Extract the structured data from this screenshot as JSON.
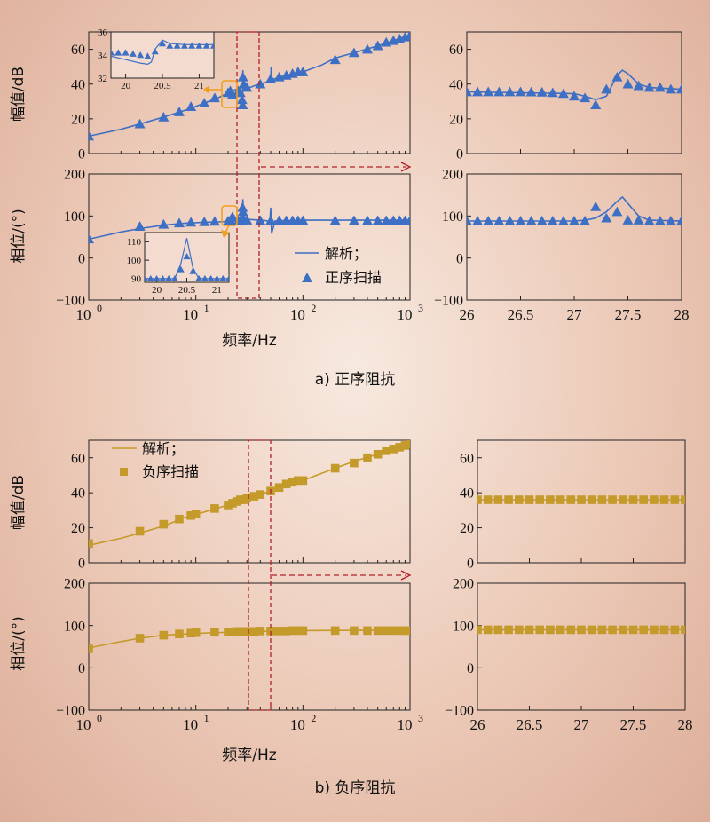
{
  "colors": {
    "blue": "#3d6fc4",
    "gold": "#c49a2a",
    "red_box": "#b3202a",
    "inset_marker": "#f0a020"
  },
  "text": {
    "caption_a": "a) 正序阻抗",
    "caption_b": "b) 负序阻抗",
    "xlabel": "频率/Hz",
    "ylabel_mag": "幅值/dB",
    "ylabel_phase": "相位/(°)",
    "legend_a_line": "解析；",
    "legend_a_marker": "正序扫描",
    "legend_b_line": "解析；",
    "legend_b_marker": "负序扫描",
    "log_ticks": [
      "10",
      "10",
      "10",
      "10"
    ],
    "log_exps": [
      "0",
      "1",
      "2",
      "3"
    ]
  },
  "chart_data": [
    {
      "id": "a_mag",
      "type": "line",
      "xscale": "log",
      "xlim": [
        1,
        1000
      ],
      "ylim": [
        0,
        70
      ],
      "yticks": [
        "0",
        "20",
        "40",
        "60"
      ],
      "analytic": {
        "x": [
          1,
          2,
          3,
          5,
          8,
          12,
          16,
          20,
          22,
          24,
          25,
          26,
          27,
          27.3,
          27.5,
          28,
          29,
          30,
          32,
          35,
          40,
          45,
          50,
          50.5,
          51,
          52,
          55,
          60,
          70,
          80,
          100,
          150,
          200,
          300,
          500,
          700,
          1000
        ],
        "y": [
          10,
          14,
          17,
          21,
          25,
          29,
          32,
          35,
          36,
          37,
          36,
          34,
          32,
          30,
          48,
          38,
          37,
          38,
          38,
          39,
          40,
          41,
          42,
          50,
          43,
          43,
          43,
          44,
          45,
          46,
          47,
          51,
          55,
          58,
          62,
          65,
          68
        ]
      },
      "scan": {
        "x": [
          1,
          3,
          5,
          7,
          9,
          12,
          15,
          20,
          21,
          22,
          25,
          26,
          27,
          27.3,
          27.5,
          28,
          30,
          40,
          50,
          60,
          70,
          80,
          90,
          100,
          200,
          300,
          400,
          500,
          600,
          700,
          800,
          900,
          1000
        ],
        "y": [
          10,
          17,
          21,
          24,
          27,
          29,
          32,
          35,
          36,
          34,
          36,
          35,
          31,
          28,
          44,
          40,
          38,
          40,
          43,
          44,
          45,
          46,
          47,
          47,
          54,
          58,
          60,
          62,
          64,
          65,
          66,
          67,
          68
        ]
      }
    },
    {
      "id": "a_mag_inset",
      "type": "line",
      "xlim": [
        19.8,
        21.2
      ],
      "ylim": [
        32,
        36
      ],
      "xticks": [
        "20",
        "20.5",
        "21"
      ],
      "yticks": [
        "32",
        "34",
        "36"
      ],
      "analytic": {
        "x": [
          19.8,
          20,
          20.2,
          20.3,
          20.35,
          20.4,
          20.5,
          20.6,
          20.8,
          21,
          21.2
        ],
        "y": [
          33.9,
          33.6,
          33.3,
          33.2,
          33.4,
          34.5,
          35.3,
          35.0,
          34.9,
          34.9,
          34.9
        ]
      },
      "scan": {
        "x": [
          19.8,
          19.9,
          20,
          20.1,
          20.2,
          20.3,
          20.4,
          20.5,
          20.6,
          20.7,
          20.8,
          20.9,
          21,
          21.1,
          21.2
        ],
        "y": [
          34.2,
          34.2,
          34.2,
          34.1,
          34.0,
          33.9,
          34.3,
          35.0,
          34.8,
          34.8,
          34.8,
          34.8,
          34.8,
          34.8,
          34.8
        ]
      }
    },
    {
      "id": "a_phase",
      "type": "line",
      "xscale": "log",
      "xlim": [
        1,
        1000
      ],
      "ylim": [
        -100,
        200
      ],
      "yticks": [
        "−100",
        "0",
        "100",
        "200"
      ],
      "analytic": {
        "x": [
          1,
          2,
          3,
          5,
          8,
          12,
          16,
          20,
          24,
          25,
          26,
          27,
          27.5,
          28,
          30,
          40,
          45,
          49,
          50,
          51,
          55,
          60,
          80,
          100,
          200,
          500,
          1000
        ],
        "y": [
          45,
          62,
          70,
          78,
          83,
          85,
          86,
          87,
          88,
          88,
          90,
          100,
          140,
          95,
          92,
          90,
          89,
          85,
          120,
          58,
          88,
          89,
          89,
          90,
          90,
          90,
          90
        ]
      },
      "scan": {
        "x": [
          1,
          3,
          5,
          7,
          9,
          12,
          15,
          20,
          21,
          22,
          25,
          26,
          27,
          27.3,
          27.5,
          28,
          30,
          40,
          50,
          60,
          70,
          80,
          90,
          100,
          200,
          300,
          400,
          500,
          600,
          700,
          800,
          900,
          1000
        ],
        "y": [
          45,
          75,
          80,
          83,
          85,
          86,
          87,
          88,
          90,
          98,
          88,
          88,
          90,
          120,
          110,
          92,
          90,
          89,
          89,
          89,
          89,
          89,
          89,
          89,
          89,
          89,
          89,
          89,
          89,
          89,
          89,
          89,
          89
        ]
      }
    },
    {
      "id": "a_phase_inset",
      "type": "line",
      "xlim": [
        19.8,
        21.2
      ],
      "ylim": [
        88,
        115
      ],
      "xticks": [
        "20",
        "20.5",
        "21"
      ],
      "yticks": [
        "90",
        "100",
        "110"
      ],
      "analytic": {
        "x": [
          19.8,
          20.2,
          20.3,
          20.4,
          20.5,
          20.6,
          20.7,
          21,
          21.2
        ],
        "y": [
          90,
          90,
          90,
          98,
          112,
          96,
          90,
          90,
          90
        ]
      },
      "scan": {
        "x": [
          19.8,
          19.9,
          20,
          20.1,
          20.2,
          20.3,
          20.4,
          20.5,
          20.6,
          20.7,
          20.8,
          20.9,
          21,
          21.1,
          21.2
        ],
        "y": [
          90,
          90,
          90,
          90,
          90,
          90,
          95,
          102,
          94,
          90,
          90,
          90,
          90,
          90,
          90
        ]
      }
    },
    {
      "id": "a_mag_zoom",
      "type": "line",
      "xlim": [
        26,
        28
      ],
      "ylim": [
        0,
        70
      ],
      "xticks": [
        "26",
        "26.5",
        "27",
        "27.5",
        "28"
      ],
      "yticks": [
        "0",
        "20",
        "40",
        "60"
      ],
      "analytic": {
        "x": [
          26,
          26.5,
          27,
          27.1,
          27.2,
          27.3,
          27.4,
          27.45,
          27.5,
          27.6,
          27.7,
          28
        ],
        "y": [
          35.5,
          35,
          34.5,
          33,
          31,
          33,
          45,
          48,
          46,
          40,
          38,
          37
        ]
      },
      "scan": {
        "x": [
          26,
          26.1,
          26.2,
          26.3,
          26.4,
          26.5,
          26.6,
          26.7,
          26.8,
          26.9,
          27,
          27.1,
          27.2,
          27.3,
          27.4,
          27.5,
          27.6,
          27.7,
          27.8,
          27.9,
          28
        ],
        "y": [
          35.5,
          35.5,
          35.5,
          35.5,
          35.5,
          35.5,
          35.4,
          35.3,
          35,
          34.5,
          33,
          32,
          28,
          37,
          44,
          40,
          39,
          38,
          38,
          37,
          37
        ]
      }
    },
    {
      "id": "a_phase_zoom",
      "type": "line",
      "xlim": [
        26,
        28
      ],
      "ylim": [
        -100,
        200
      ],
      "xticks": [
        "26",
        "26.5",
        "27",
        "27.5",
        "28"
      ],
      "yticks": [
        "−100",
        "0",
        "100",
        "200"
      ],
      "analytic": {
        "x": [
          26,
          26.5,
          27,
          27.1,
          27.2,
          27.3,
          27.4,
          27.45,
          27.5,
          27.6,
          27.7,
          28
        ],
        "y": [
          88,
          88,
          88,
          90,
          95,
          110,
          135,
          145,
          130,
          100,
          90,
          88
        ]
      },
      "scan": {
        "x": [
          26,
          26.1,
          26.2,
          26.3,
          26.4,
          26.5,
          26.6,
          26.7,
          26.8,
          26.9,
          27,
          27.1,
          27.2,
          27.3,
          27.4,
          27.5,
          27.6,
          27.7,
          27.8,
          27.9,
          28
        ],
        "y": [
          88,
          88,
          88,
          88,
          88,
          88,
          88,
          88,
          88,
          88,
          88,
          88,
          122,
          95,
          110,
          90,
          90,
          88,
          88,
          88,
          88
        ]
      }
    },
    {
      "id": "b_mag",
      "type": "line",
      "xscale": "log",
      "xlim": [
        1,
        1000
      ],
      "ylim": [
        0,
        70
      ],
      "yticks": [
        "0",
        "20",
        "40",
        "60"
      ],
      "analytic": {
        "x": [
          1,
          2,
          3,
          5,
          8,
          12,
          20,
          30,
          50,
          100,
          200,
          300,
          500,
          1000
        ],
        "y": [
          10,
          14,
          17,
          21,
          26,
          29,
          33,
          37,
          41,
          47,
          54,
          58,
          62,
          68
        ]
      },
      "scan": {
        "x": [
          1,
          3,
          5,
          7,
          9,
          10,
          15,
          20,
          22,
          24,
          26,
          28,
          30,
          35,
          40,
          50,
          60,
          70,
          80,
          90,
          100,
          200,
          300,
          400,
          500,
          600,
          700,
          800,
          900,
          1000
        ],
        "y": [
          11,
          18,
          22,
          25,
          27,
          28,
          31,
          33,
          34,
          35,
          36,
          36,
          37,
          38,
          39,
          41,
          43,
          45,
          46,
          47,
          47,
          54,
          57,
          60,
          62,
          64,
          65,
          66,
          67,
          68
        ]
      }
    },
    {
      "id": "b_phase",
      "type": "line",
      "xscale": "log",
      "xlim": [
        1,
        1000
      ],
      "ylim": [
        -100,
        200
      ],
      "yticks": [
        "−100",
        "0",
        "100",
        "200"
      ],
      "analytic": {
        "x": [
          1,
          2,
          3,
          5,
          8,
          12,
          20,
          30,
          50,
          100,
          1000
        ],
        "y": [
          47,
          62,
          70,
          77,
          80,
          82,
          84,
          85,
          87,
          88,
          89
        ]
      },
      "scan": {
        "x": [
          1,
          3,
          5,
          7,
          9,
          10,
          15,
          20,
          22,
          24,
          26,
          28,
          30,
          35,
          40,
          50,
          60,
          70,
          80,
          90,
          100,
          200,
          300,
          400,
          500,
          600,
          700,
          800,
          900,
          1000
        ],
        "y": [
          45,
          70,
          77,
          80,
          82,
          83,
          84,
          85,
          85,
          86,
          86,
          86,
          86,
          86,
          87,
          87,
          87,
          87,
          88,
          88,
          88,
          88,
          88,
          88,
          88,
          88,
          88,
          88,
          88,
          88
        ]
      }
    },
    {
      "id": "b_mag_zoom",
      "type": "line",
      "xlim": [
        26,
        28
      ],
      "ylim": [
        0,
        70
      ],
      "xticks": [
        "26",
        "26.5",
        "27",
        "27.5",
        "28"
      ],
      "yticks": [
        "0",
        "20",
        "40",
        "60"
      ],
      "analytic": {
        "x": [
          26,
          28
        ],
        "y": [
          36,
          36
        ]
      },
      "scan": {
        "x": [
          26,
          26.1,
          26.2,
          26.3,
          26.4,
          26.5,
          26.6,
          26.7,
          26.8,
          26.9,
          27,
          27.1,
          27.2,
          27.3,
          27.4,
          27.5,
          27.6,
          27.7,
          27.8,
          27.9,
          28
        ],
        "y": [
          36,
          36,
          36,
          36,
          36,
          36,
          36,
          36,
          36,
          36,
          36,
          36,
          36,
          36,
          36,
          36,
          36,
          36,
          36,
          36,
          36
        ]
      }
    },
    {
      "id": "b_phase_zoom",
      "type": "line",
      "xlim": [
        26,
        28
      ],
      "ylim": [
        -100,
        200
      ],
      "xticks": [
        "26",
        "26.5",
        "27",
        "27.5",
        "28"
      ],
      "yticks": [
        "−100",
        "0",
        "100",
        "200"
      ],
      "analytic": {
        "x": [
          26,
          28
        ],
        "y": [
          90,
          90
        ]
      },
      "scan": {
        "x": [
          26,
          26.1,
          26.2,
          26.3,
          26.4,
          26.5,
          26.6,
          26.7,
          26.8,
          26.9,
          27,
          27.1,
          27.2,
          27.3,
          27.4,
          27.5,
          27.6,
          27.7,
          27.8,
          27.9,
          28
        ],
        "y": [
          90,
          90,
          90,
          90,
          90,
          90,
          90,
          90,
          90,
          90,
          90,
          90,
          90,
          90,
          90,
          90,
          90,
          90,
          90,
          90,
          90
        ]
      }
    }
  ]
}
